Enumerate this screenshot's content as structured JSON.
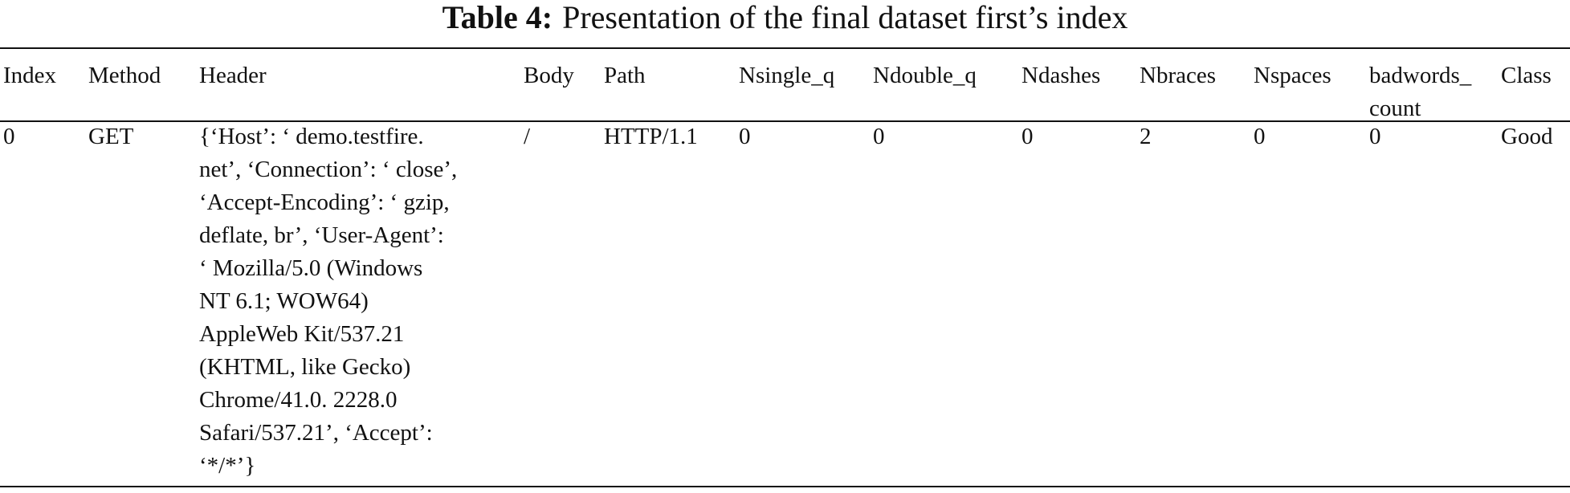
{
  "caption": {
    "label": "Table 4:",
    "text": "Presentation of the final dataset first’s index"
  },
  "table": {
    "columns": [
      "Index",
      "Method",
      "Header",
      "Body",
      "Path",
      "Nsingle_q",
      "Ndouble_q",
      "Ndashes",
      "Nbraces",
      "Nspaces",
      "badwords_ count",
      "Class"
    ],
    "rows": [
      [
        "0",
        "GET",
        [
          "{‘Host’: ‘ demo.testfire.",
          "net’, ‘Connection’: ‘ close’,",
          "‘Accept-Encoding’: ‘ gzip,",
          "deflate, br’, ‘User-Agent’:",
          "‘ Mozilla/5.0 (Windows",
          "NT 6.1; WOW64)",
          "AppleWeb Kit/537.21",
          "(KHTML, like Gecko)",
          "Chrome/41.0. 2228.0",
          "Safari/537.21’, ‘Accept’:",
          "‘*/*’}"
        ],
        "/",
        "HTTP/1.1",
        "0",
        "0",
        "0",
        "2",
        "0",
        "0",
        "Good"
      ]
    ]
  }
}
